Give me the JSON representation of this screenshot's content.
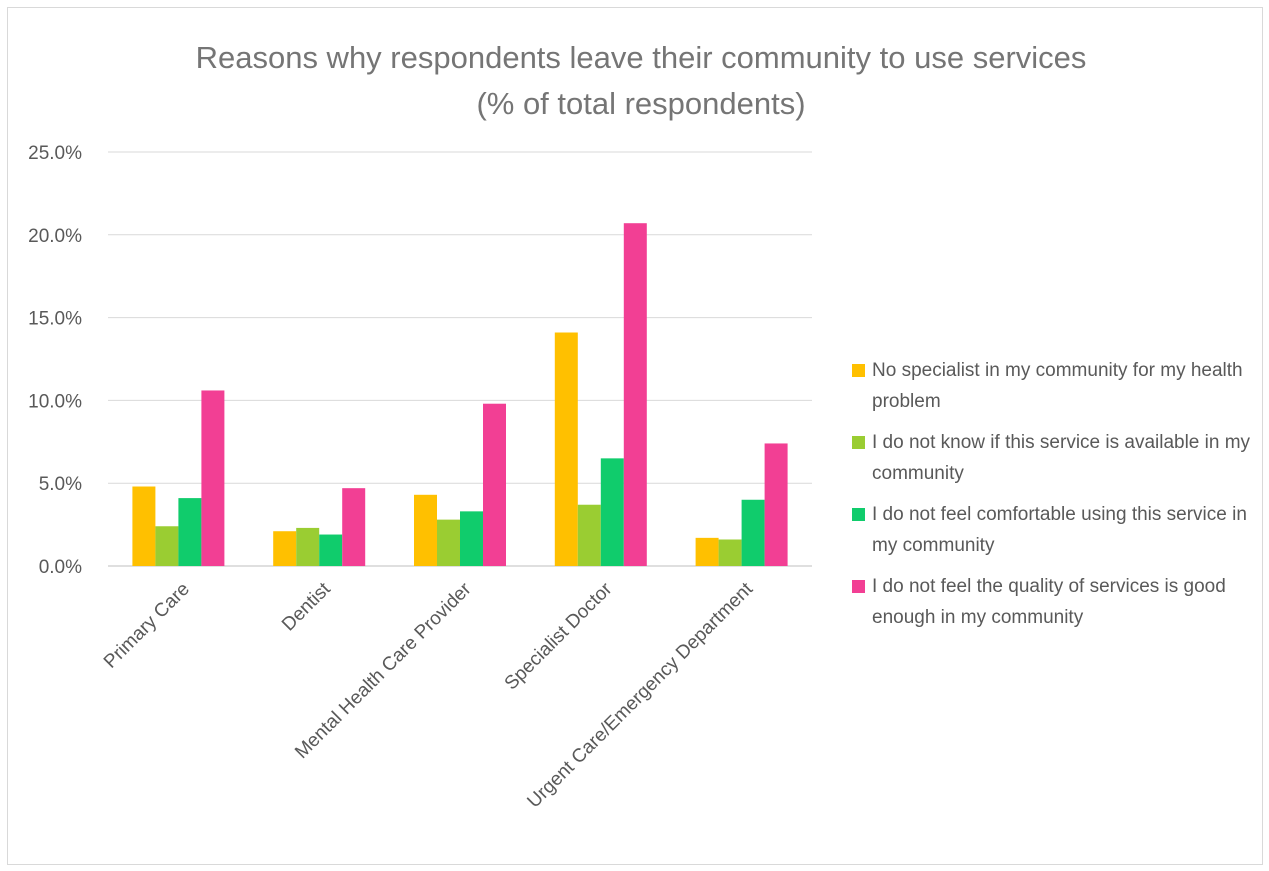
{
  "chart_data": {
    "type": "bar",
    "title": "Reasons why respondents leave their community to use services",
    "subtitle": "(% of total respondents)",
    "categories": [
      "Primary Care",
      "Dentist",
      "Mental Health Care Provider",
      "Specialist Doctor",
      "Urgent Care/Emergency Department"
    ],
    "series": [
      {
        "name": "No specialist in my community for my health problem",
        "color": "#ffc000",
        "values": [
          4.8,
          2.1,
          4.3,
          14.1,
          1.7
        ]
      },
      {
        "name": "I do not know if this service is available in my community",
        "color": "#9acd32",
        "values": [
          2.4,
          2.3,
          2.8,
          3.7,
          1.6
        ]
      },
      {
        "name": "I do not feel comfortable using this service in my community",
        "color": "#10cc6c",
        "values": [
          4.1,
          1.9,
          3.3,
          6.5,
          4.0
        ]
      },
      {
        "name": "I do not feel the quality of services is good enough in my community",
        "color": "#f23f94",
        "values": [
          10.6,
          4.7,
          9.8,
          20.7,
          7.4
        ]
      }
    ],
    "ylim": [
      0,
      25
    ],
    "yticks": [
      "0.0%",
      "5.0%",
      "10.0%",
      "15.0%",
      "20.0%",
      "25.0%"
    ],
    "grid": true,
    "legend_position": "right"
  }
}
